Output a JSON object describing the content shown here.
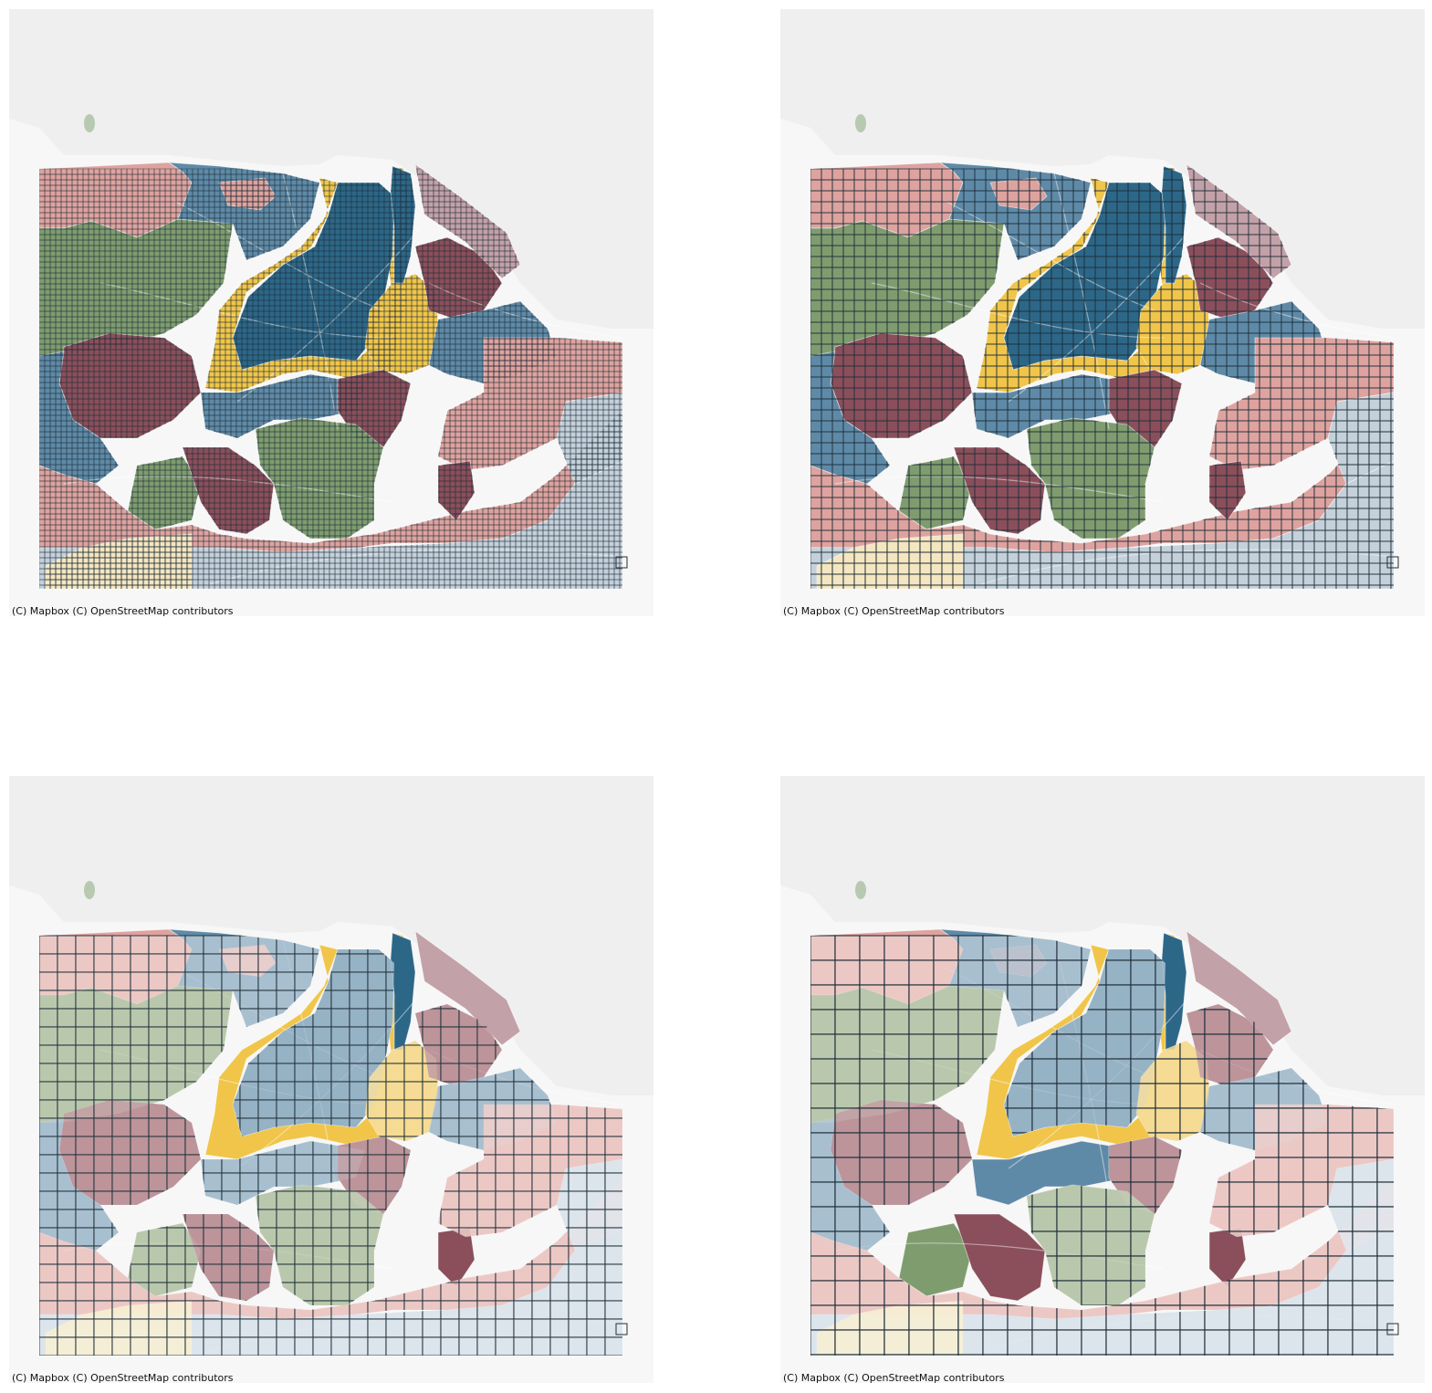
{
  "colors": {
    "sea": "#efefef",
    "land": "#f7f7f7",
    "blue_dark": "#2d6788",
    "blue": "#5f8aa7",
    "yellow": "#f0c54a",
    "pink": "#dea39f",
    "maroon": "#8a4f5b",
    "green": "#7f9c6f",
    "lightblue": "#c4d0da",
    "cream": "#f4e6c0",
    "mauve": "#c3a1a8",
    "grid_stroke": "#1f2f3a",
    "road": "#ffffff"
  },
  "panels": [
    {
      "id": "panel-1",
      "grid_level": "finest",
      "attribution": "(C) Mapbox (C) OpenStreetMap contributors"
    },
    {
      "id": "panel-2",
      "grid_level": "fine",
      "attribution": "(C) Mapbox (C) OpenStreetMap contributors"
    },
    {
      "id": "panel-3",
      "grid_level": "medium",
      "attribution": "(C) Mapbox (C) OpenStreetMap contributors"
    },
    {
      "id": "panel-4",
      "grid_level": "coarse",
      "attribution": "(C) Mapbox (C) OpenStreetMap contributors"
    }
  ]
}
